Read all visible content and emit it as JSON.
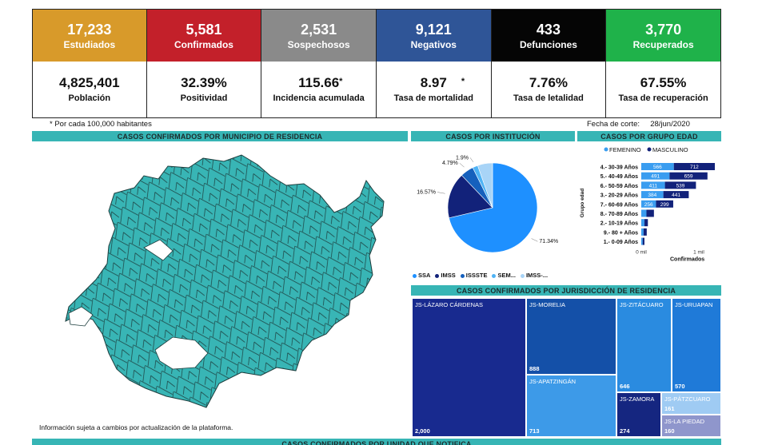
{
  "kpis": [
    {
      "number": "17,233",
      "label": "Estudiados",
      "color": "#d89a2a",
      "value": "4,825,401",
      "caption": "Población",
      "star": ""
    },
    {
      "number": "5,581",
      "label": "Confirmados",
      "color": "#c3202a",
      "value": "32.39%",
      "caption": "Positividad",
      "star": ""
    },
    {
      "number": "2,531",
      "label": "Sospechosos",
      "color": "#8a8a8a",
      "value": "115.66",
      "caption": "Incidencia acumulada",
      "star": "*"
    },
    {
      "number": "9,121",
      "label": "Negativos",
      "color": "#2f5597",
      "value": "8.97",
      "caption": "Tasa de mortalidad",
      "star": "*"
    },
    {
      "number": "433",
      "label": "Defunciones",
      "color": "#050505",
      "value": "7.76%",
      "caption": "Tasa de letalidad",
      "star": ""
    },
    {
      "number": "3,770",
      "label": "Recuperados",
      "color": "#1fb24a",
      "value": "67.55%",
      "caption": "Tasa de recuperación",
      "star": ""
    }
  ],
  "footnote": "* Por cada 100,000 habitantes",
  "cut_date": "Fecha de corte:     28/jun/2020",
  "headers": {
    "municipio": "CASOS CONFIRMADOS POR MUNICIPIO DE RESIDENCIA",
    "institucion": "CASOS POR INSTITUCIÓN",
    "grupo_edad": "CASOS POR GRUPO EDAD",
    "jurisdiccion": "CASOS CONFIRMADOS POR JURISDICCIÓN DE RESIDENCIA",
    "unidad": "CASOS CONFIRMADOS POR UNIDAD QUE NOTIFICA"
  },
  "map_note": "Información sujeta a cambios por actualización de la plataforma.",
  "chart_data": [
    {
      "type": "pie",
      "title": "CASOS POR INSTITUCIÓN",
      "slices": [
        {
          "label": "SSA",
          "value": 71.34,
          "text": "71.34%",
          "color": "#1e90ff"
        },
        {
          "label": "IMSS",
          "value": 16.57,
          "text": "16.57%",
          "color": "#12227a"
        },
        {
          "label": "ISSSTE",
          "value": 4.79,
          "text": "4.79%",
          "color": "#1560bd"
        },
        {
          "label": "SEM...",
          "value": 1.9,
          "text": "1.9%",
          "color": "#4fb3f5"
        },
        {
          "label": "IMSS-...",
          "value": 5.4,
          "text": "",
          "color": "#a8d4f7"
        }
      ]
    },
    {
      "type": "bar",
      "title": "CASOS POR GRUPO EDAD",
      "legend": [
        "FEMENINO",
        "MASCULINO"
      ],
      "legend_colors": [
        "#3a9df0",
        "#12227a"
      ],
      "ylabel": "Grupo edad",
      "xlabel": "Confirmados",
      "xticks": [
        "0 mil",
        "1 mil"
      ],
      "xlim": [
        0,
        1000
      ],
      "categories": [
        "4.- 30-39 Años",
        "5.- 40-49 Años",
        "6.- 50-59 Años",
        "3.- 20-29 Años",
        "7.- 60-69 Años",
        "8.- 70-89 Años",
        "2.- 10-19 Años",
        "9.- 80 + Años",
        "1.- 0-09 Años"
      ],
      "series": [
        {
          "name": "FEMENINO",
          "values": [
            566,
            491,
            411,
            384,
            256,
            90,
            55,
            40,
            25
          ],
          "labels": [
            "566",
            "491",
            "411",
            "384",
            "256",
            "",
            "",
            "",
            ""
          ]
        },
        {
          "name": "MASCULINO",
          "values": [
            712,
            659,
            539,
            441,
            299,
            130,
            60,
            55,
            30
          ],
          "labels": [
            "712",
            "659",
            "539",
            "441",
            "299",
            "",
            "",
            "",
            ""
          ]
        }
      ]
    },
    {
      "type": "treemap",
      "title": "CASOS CONFIRMADOS POR JURISDICCIÓN DE RESIDENCIA",
      "items": [
        {
          "name": "JS-LÁZARO CÁRDENAS",
          "value": 2000,
          "color": "#182a8f"
        },
        {
          "name": "JS-MORELIA",
          "value": 888,
          "color": "#1450a8"
        },
        {
          "name": "JS-APATZINGÁN",
          "value": 713,
          "color": "#3d9ae8"
        },
        {
          "name": "JS-ZITÁCUARO",
          "value": 646,
          "color": "#2a8be0"
        },
        {
          "name": "JS-URUAPAN",
          "value": 570,
          "color": "#1f7ad8"
        },
        {
          "name": "JS-ZAMORA",
          "value": 274,
          "color": "#152680"
        },
        {
          "name": "JS-PÁTZCUARO",
          "value": 161,
          "color": "#9fcbf3"
        },
        {
          "name": "JS-LA PIEDAD",
          "value": 160,
          "color": "#8f96cc"
        }
      ]
    }
  ]
}
